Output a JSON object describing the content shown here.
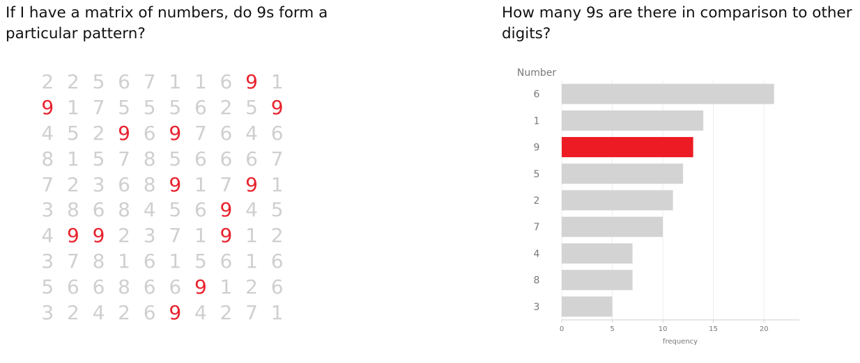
{
  "left_panel": {
    "title": "If I have a matrix of numbers, do 9s form a particular pattern?",
    "highlight_digit": "9",
    "highlight_color": "#e8232e",
    "base_color": "#cfcfcf",
    "matrix": [
      [
        "2",
        "2",
        "5",
        "6",
        "7",
        "1",
        "1",
        "6",
        "9",
        "1"
      ],
      [
        "9",
        "1",
        "7",
        "5",
        "5",
        "5",
        "6",
        "2",
        "5",
        "9"
      ],
      [
        "4",
        "5",
        "2",
        "9",
        "6",
        "9",
        "7",
        "6",
        "4",
        "6"
      ],
      [
        "8",
        "1",
        "5",
        "7",
        "8",
        "5",
        "6",
        "6",
        "6",
        "7"
      ],
      [
        "7",
        "2",
        "3",
        "6",
        "8",
        "9",
        "1",
        "7",
        "9",
        "1"
      ],
      [
        "3",
        "8",
        "6",
        "8",
        "4",
        "5",
        "6",
        "9",
        "4",
        "5"
      ],
      [
        "4",
        "9",
        "9",
        "2",
        "3",
        "7",
        "1",
        "9",
        "1",
        "2"
      ],
      [
        "3",
        "7",
        "8",
        "1",
        "6",
        "1",
        "5",
        "6",
        "1",
        "6"
      ],
      [
        "5",
        "6",
        "6",
        "8",
        "6",
        "6",
        "9",
        "1",
        "2",
        "6"
      ],
      [
        "3",
        "2",
        "4",
        "2",
        "6",
        "9",
        "4",
        "2",
        "7",
        "1"
      ]
    ]
  },
  "right_panel": {
    "title": "How many 9s are there in comparison to other digits?"
  },
  "chart_data": {
    "type": "bar",
    "orientation": "horizontal",
    "ylabel": "Number",
    "xlabel": "frequency",
    "categories": [
      "6",
      "1",
      "9",
      "5",
      "2",
      "7",
      "4",
      "8",
      "3"
    ],
    "values": [
      21,
      14,
      13,
      12,
      11,
      10,
      7,
      7,
      5
    ],
    "xlim": [
      0,
      23.5
    ],
    "xticks": [
      0,
      5,
      10,
      15,
      20
    ],
    "grid": true,
    "highlight_category": "9",
    "colors": {
      "bar": "#d3d3d3",
      "highlight": "#ed1c24",
      "axis_text": "#777777"
    }
  }
}
